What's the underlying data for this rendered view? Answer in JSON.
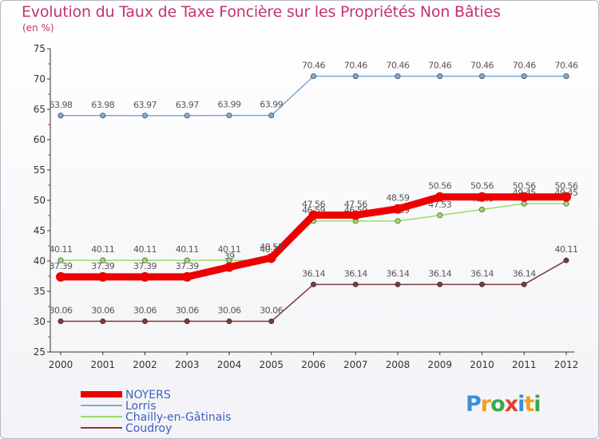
{
  "title": "Evolution du Taux de Taxe Foncière sur les Propriétés Non Bâties",
  "unit_label": "(en %)",
  "logo_text": "Proxiti",
  "chart_data": {
    "type": "line",
    "title": "Evolution du Taux de Taxe Foncière sur les Propriétés Non Bâties",
    "ylabel": "(en %)",
    "xlabel": "",
    "ylim": [
      25,
      75
    ],
    "yticks": [
      25,
      30,
      35,
      40,
      45,
      50,
      55,
      60,
      65,
      70,
      75
    ],
    "grid": false,
    "legend_position": "bottom-left",
    "categories": [
      "2000",
      "2001",
      "2002",
      "2003",
      "2004",
      "2005",
      "2006",
      "2007",
      "2008",
      "2009",
      "2010",
      "2011",
      "2012"
    ],
    "series": [
      {
        "name": "NOYERS",
        "color": "#ee0000",
        "values": [
          37.39,
          37.39,
          37.39,
          37.39,
          39,
          40.51,
          47.56,
          47.56,
          48.59,
          50.56,
          50.56,
          50.56,
          50.56
        ],
        "labels": [
          "37.39",
          "37.39",
          "37.39",
          "37.39",
          "39",
          "40.51",
          "47.56",
          "47.56",
          "48.59",
          "50.56",
          "50.56",
          "50.56",
          "50.56"
        ]
      },
      {
        "name": "Lorris",
        "color": "#7aabd6",
        "values": [
          63.98,
          63.98,
          63.97,
          63.97,
          63.99,
          63.99,
          70.46,
          70.46,
          70.46,
          70.46,
          70.46,
          70.46,
          70.46
        ],
        "labels": [
          "63.98",
          "63.98",
          "63.97",
          "63.97",
          "63.99",
          "63.99",
          "70.46",
          "70.46",
          "70.46",
          "70.46",
          "70.46",
          "70.46",
          "70.46"
        ]
      },
      {
        "name": "Chailly-en-Gâtinais",
        "color": "#99dd66",
        "values": [
          40.11,
          40.11,
          40.11,
          40.11,
          40.11,
          40.11,
          46.59,
          46.59,
          46.59,
          47.53,
          48.49,
          49.45,
          49.45
        ],
        "labels": [
          "40.11",
          "40.11",
          "40.11",
          "40.11",
          "40.11",
          "40.11",
          "46.59",
          "46.59",
          "46.59",
          "47.53",
          "48.49",
          "49.45",
          "49.45"
        ]
      },
      {
        "name": "Coudroy",
        "color": "#7a3a3a",
        "values": [
          30.06,
          30.06,
          30.06,
          30.06,
          30.06,
          30.06,
          36.14,
          36.14,
          36.14,
          36.14,
          36.14,
          36.14,
          40.11
        ],
        "labels": [
          "30.06",
          "30.06",
          "30.06",
          "30.06",
          "30.06",
          "30.06",
          "36.14",
          "36.14",
          "36.14",
          "36.14",
          "36.14",
          "36.14",
          "40.11"
        ]
      }
    ]
  }
}
